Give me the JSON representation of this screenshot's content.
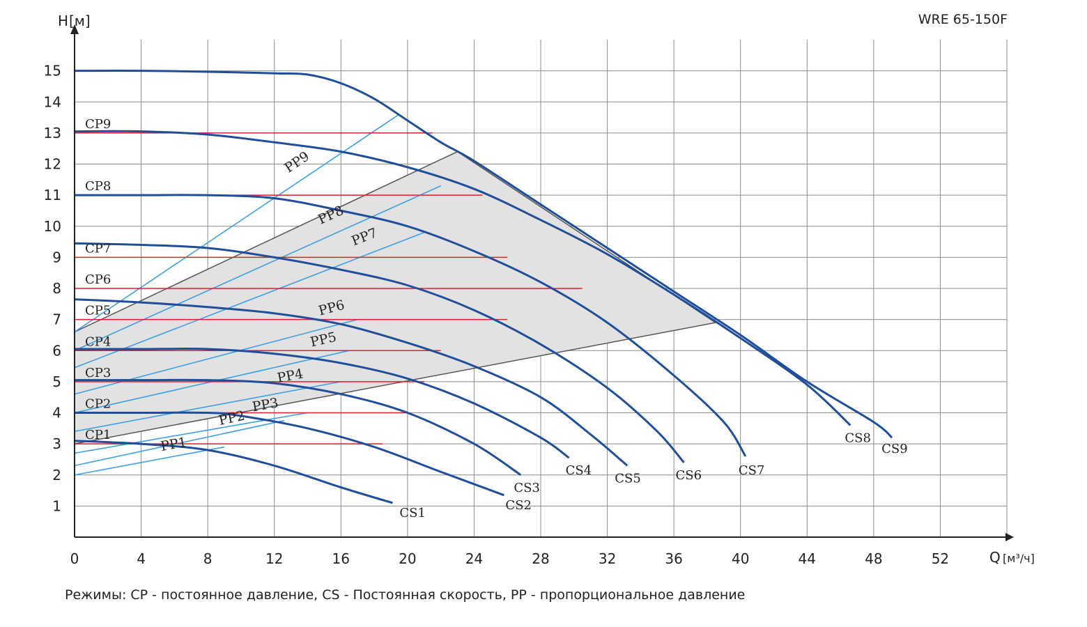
{
  "model": "WRE 65-150F",
  "footnote": "Режимы: CP - постоянное давление, CS - Постоянная скорость, PP - пропорциональное давление",
  "colors": {
    "cs_curve": "#1f4e9a",
    "cp_line": "#e0202a",
    "pp_line": "#3aa0e6",
    "region_fill": "#e2e2e2",
    "region_edge": "#555555",
    "grid": "#8c8c8c"
  },
  "chart_data": {
    "type": "line",
    "title": "",
    "xlabel": "Q",
    "xlabel_unit": "[м³/ч]",
    "ylabel": "H",
    "ylabel_unit": "[м]",
    "xlim": [
      0,
      56
    ],
    "ylim": [
      0,
      16
    ],
    "xticks": [
      "0",
      "4",
      "8",
      "12",
      "16",
      "20",
      "24",
      "28",
      "32",
      "36",
      "40",
      "44",
      "48",
      "52"
    ],
    "yticks": [
      "1",
      "2",
      "3",
      "4",
      "5",
      "6",
      "7",
      "8",
      "9",
      "10",
      "11",
      "12",
      "13",
      "14",
      "15"
    ],
    "grid": true,
    "cs_series": [
      {
        "name": "CS1",
        "points": [
          [
            0,
            3.1
          ],
          [
            4,
            3.0
          ],
          [
            8,
            2.8
          ],
          [
            12,
            2.3
          ],
          [
            16,
            1.6
          ],
          [
            19.1,
            1.1
          ]
        ]
      },
      {
        "name": "CS2",
        "points": [
          [
            0,
            4.0
          ],
          [
            4,
            4.0
          ],
          [
            8,
            4.0
          ],
          [
            10,
            3.9
          ],
          [
            14,
            3.5
          ],
          [
            18,
            2.9
          ],
          [
            22,
            2.1
          ],
          [
            25.8,
            1.35
          ]
        ]
      },
      {
        "name": "CS3",
        "points": [
          [
            0,
            5.05
          ],
          [
            4,
            5.05
          ],
          [
            8,
            5.05
          ],
          [
            12,
            4.95
          ],
          [
            16,
            4.6
          ],
          [
            20,
            4.0
          ],
          [
            24,
            3.0
          ],
          [
            26.8,
            2.0
          ]
        ]
      },
      {
        "name": "CS4",
        "points": [
          [
            0,
            6.05
          ],
          [
            4,
            6.05
          ],
          [
            8,
            6.05
          ],
          [
            12,
            5.9
          ],
          [
            16,
            5.6
          ],
          [
            20,
            5.1
          ],
          [
            24,
            4.3
          ],
          [
            28,
            3.2
          ],
          [
            29.7,
            2.55
          ]
        ]
      },
      {
        "name": "CS5",
        "points": [
          [
            0,
            7.65
          ],
          [
            4,
            7.55
          ],
          [
            8,
            7.4
          ],
          [
            12,
            7.2
          ],
          [
            16,
            6.85
          ],
          [
            20,
            6.25
          ],
          [
            24,
            5.5
          ],
          [
            28,
            4.5
          ],
          [
            31,
            3.3
          ],
          [
            33.2,
            2.3
          ]
        ]
      },
      {
        "name": "CS6",
        "points": [
          [
            0,
            9.45
          ],
          [
            4,
            9.4
          ],
          [
            8,
            9.3
          ],
          [
            12,
            9.0
          ],
          [
            16,
            8.6
          ],
          [
            20,
            8.1
          ],
          [
            24,
            7.3
          ],
          [
            28,
            6.2
          ],
          [
            32,
            4.8
          ],
          [
            35,
            3.4
          ],
          [
            36.6,
            2.4
          ]
        ]
      },
      {
        "name": "CS7",
        "points": [
          [
            0,
            11.0
          ],
          [
            4,
            11.0
          ],
          [
            8,
            11.0
          ],
          [
            12,
            10.9
          ],
          [
            16,
            10.5
          ],
          [
            20,
            10.0
          ],
          [
            24,
            9.2
          ],
          [
            28,
            8.2
          ],
          [
            32,
            6.9
          ],
          [
            36,
            5.2
          ],
          [
            39,
            3.7
          ],
          [
            40.3,
            2.6
          ]
        ]
      },
      {
        "name": "CS8",
        "points": [
          [
            0,
            13.05
          ],
          [
            4,
            13.05
          ],
          [
            8,
            12.95
          ],
          [
            12,
            12.7
          ],
          [
            16,
            12.4
          ],
          [
            20,
            11.9
          ],
          [
            24,
            11.2
          ],
          [
            28,
            10.2
          ],
          [
            32,
            9.1
          ],
          [
            36,
            7.8
          ],
          [
            40,
            6.4
          ],
          [
            44,
            4.9
          ],
          [
            46.6,
            3.6
          ]
        ]
      },
      {
        "name": "CS9",
        "points": [
          [
            0,
            15.0
          ],
          [
            4,
            15.0
          ],
          [
            8,
            14.97
          ],
          [
            12,
            14.92
          ],
          [
            14,
            14.88
          ],
          [
            16,
            14.6
          ],
          [
            18,
            14.1
          ],
          [
            20,
            13.4
          ],
          [
            22,
            12.7
          ],
          [
            24,
            12.1
          ],
          [
            28,
            10.7
          ],
          [
            32,
            9.3
          ],
          [
            36,
            7.9
          ],
          [
            40,
            6.5
          ],
          [
            44,
            5.0
          ],
          [
            48,
            3.7
          ],
          [
            49.1,
            3.2
          ]
        ]
      }
    ],
    "cp_series": [
      {
        "name": "CP1",
        "h": 3,
        "x_end": 18.5
      },
      {
        "name": "CP2",
        "h": 4,
        "x_end": 20.0
      },
      {
        "name": "CP3",
        "h": 5,
        "x_end": 21.0
      },
      {
        "name": "CP4",
        "h": 6,
        "x_end": 22.0
      },
      {
        "name": "CP5",
        "h": 7,
        "x_end": 26.0
      },
      {
        "name": "CP6",
        "h": 8,
        "x_end": 30.5
      },
      {
        "name": "CP7",
        "h": 9,
        "x_end": 26.0
      },
      {
        "name": "CP8",
        "h": 11,
        "x_end": 24.5
      },
      {
        "name": "CP9",
        "h": 13,
        "x_end": 21.5
      }
    ],
    "pp_series": [
      {
        "name": "PP1",
        "points": [
          [
            0,
            2.0
          ],
          [
            9.0,
            2.9
          ]
        ]
      },
      {
        "name": "PP2",
        "points": [
          [
            0,
            2.3
          ],
          [
            12.6,
            3.75
          ]
        ]
      },
      {
        "name": "PP3",
        "points": [
          [
            0,
            2.7
          ],
          [
            14.0,
            4.0
          ]
        ]
      },
      {
        "name": "PP4",
        "points": [
          [
            0,
            3.4
          ],
          [
            16.0,
            5.0
          ]
        ]
      },
      {
        "name": "PP5",
        "points": [
          [
            0,
            4.0
          ],
          [
            16.5,
            6.0
          ]
        ]
      },
      {
        "name": "PP6",
        "points": [
          [
            0,
            4.6
          ],
          [
            17.0,
            7.0
          ]
        ]
      },
      {
        "name": "PP7",
        "points": [
          [
            0,
            5.45
          ],
          [
            21.0,
            9.8
          ]
        ]
      },
      {
        "name": "PP8",
        "points": [
          [
            0,
            6.0
          ],
          [
            22.0,
            11.3
          ]
        ]
      },
      {
        "name": "PP9",
        "points": [
          [
            0,
            6.6
          ],
          [
            19.5,
            13.6
          ]
        ]
      }
    ],
    "operating_region": [
      [
        0,
        3.0
      ],
      [
        38.5,
        6.9
      ],
      [
        23.0,
        12.4
      ],
      [
        0,
        6.6
      ]
    ]
  }
}
